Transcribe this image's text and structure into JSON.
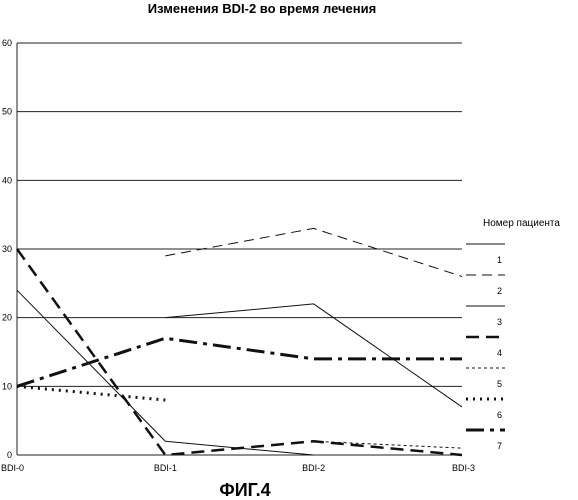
{
  "chart_data": {
    "type": "line",
    "title": "Изменения BDI-2 во время лечения",
    "caption": "ФИГ.4",
    "categories": [
      "BDI-0",
      "BDI-1",
      "BDI-2",
      "BDI-3"
    ],
    "y_ticks": [
      0,
      10,
      20,
      30,
      40,
      50,
      60
    ],
    "ylim": [
      0,
      60
    ],
    "grid": "horizontal",
    "legend": {
      "title": "Номер пациента",
      "position": "right"
    },
    "series": [
      {
        "name": "1",
        "values": [
          24,
          2,
          0,
          null
        ]
      },
      {
        "name": "2",
        "values": [
          null,
          29,
          33,
          26
        ]
      },
      {
        "name": "3",
        "values": [
          null,
          20,
          22,
          7
        ]
      },
      {
        "name": "4",
        "values": [
          30,
          0,
          2,
          0
        ]
      },
      {
        "name": "5",
        "values": [
          null,
          null,
          2,
          1
        ]
      },
      {
        "name": "6",
        "values": [
          10,
          8,
          null,
          null
        ]
      },
      {
        "name": "7",
        "values": [
          10,
          17,
          14,
          14
        ]
      }
    ]
  }
}
